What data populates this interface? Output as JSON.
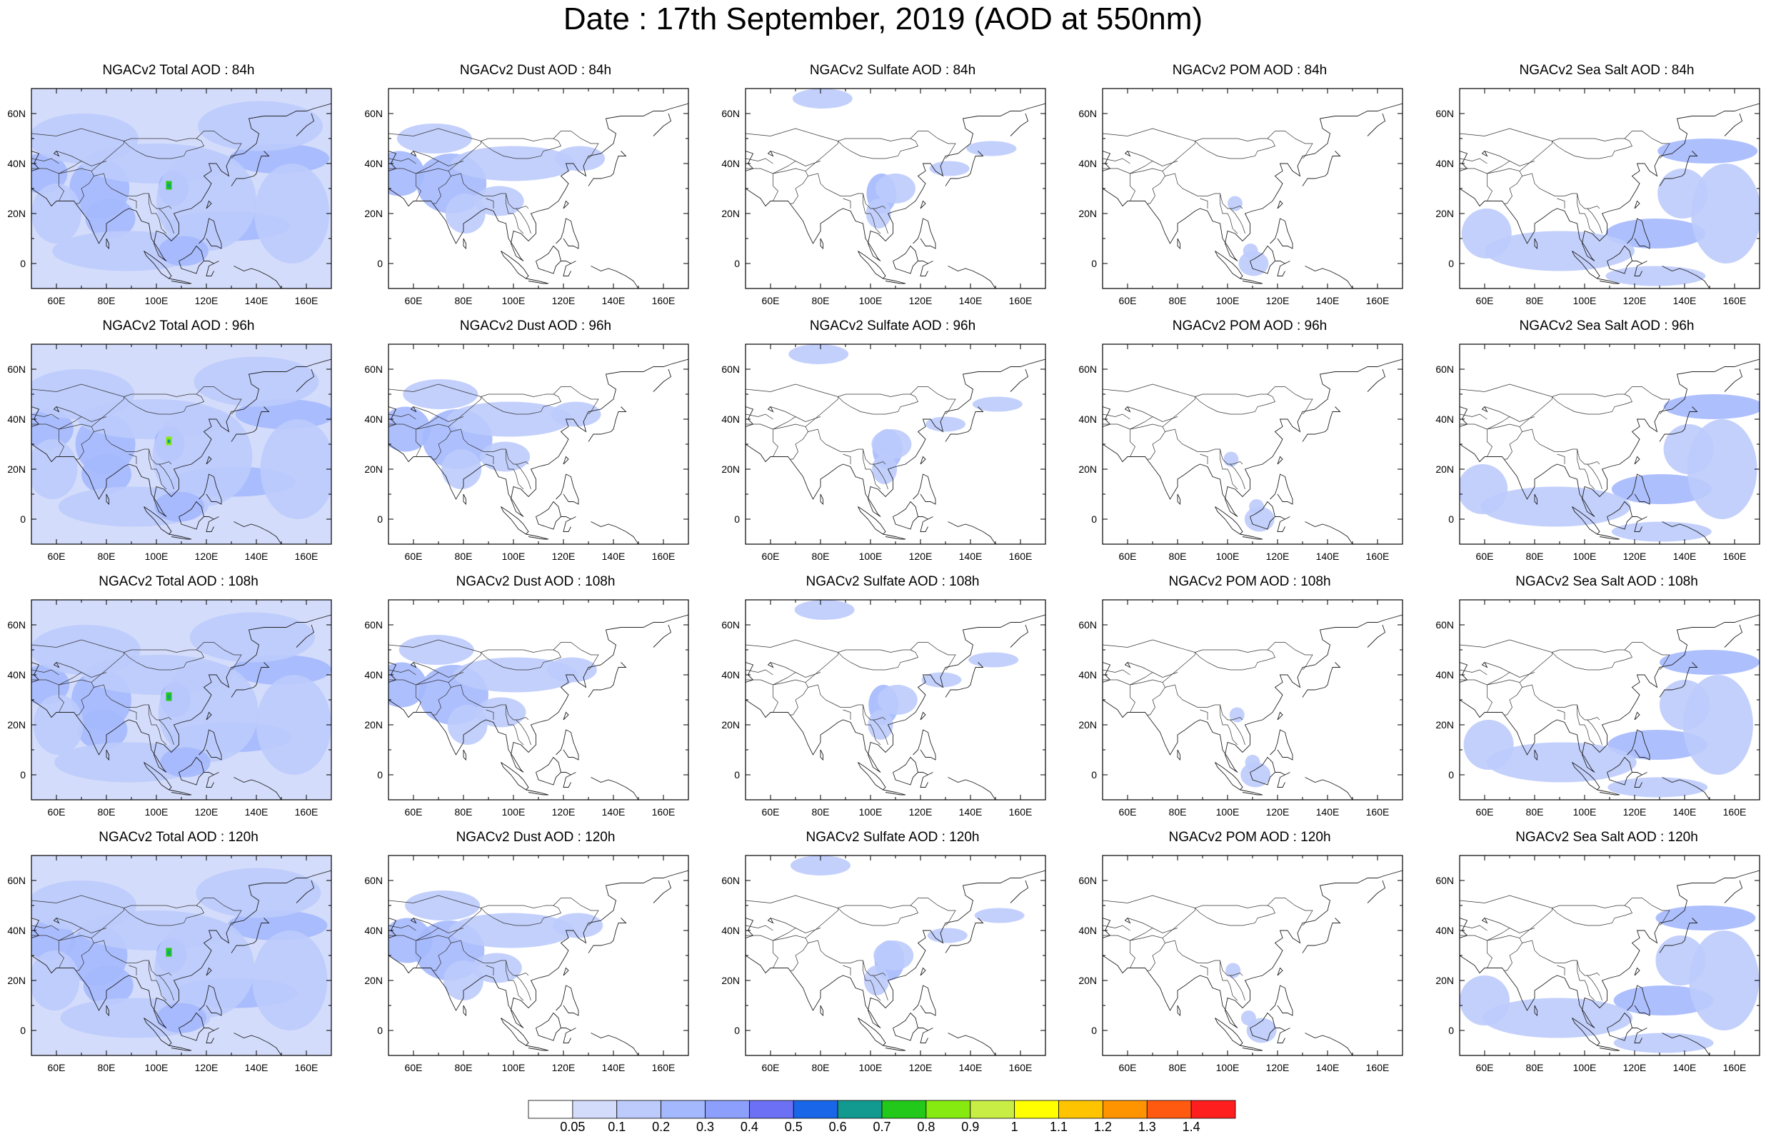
{
  "title": "Date : 17th September, 2019 (AOD at 550nm)",
  "panels": [
    [
      "NGACv2 Total AOD : 84h",
      "NGACv2 Dust AOD : 84h",
      "NGACv2 Sulfate AOD : 84h",
      "NGACv2 POM AOD : 84h",
      "NGACv2 Sea Salt AOD : 84h"
    ],
    [
      "NGACv2 Total AOD : 96h",
      "NGACv2 Dust AOD : 96h",
      "NGACv2 Sulfate AOD : 96h",
      "NGACv2 POM AOD : 96h",
      "NGACv2 Sea Salt AOD : 96h"
    ],
    [
      "NGACv2 Total AOD : 108h",
      "NGACv2 Dust AOD : 108h",
      "NGACv2 Sulfate AOD : 108h",
      "NGACv2 POM AOD : 108h",
      "NGACv2 Sea Salt AOD : 108h"
    ],
    [
      "NGACv2 Total AOD : 120h",
      "NGACv2 Dust AOD : 120h",
      "NGACv2 Sulfate AOD : 120h",
      "NGACv2 POM AOD : 120h",
      "NGACv2 Sea Salt  AOD : 120h"
    ]
  ],
  "axis": {
    "lon_ticks": [
      "60E",
      "80E",
      "100E",
      "120E",
      "140E",
      "160E"
    ],
    "lat_ticks": [
      "60N",
      "40N",
      "20N",
      "0"
    ],
    "lon_range": [
      50,
      170
    ],
    "lat_range": [
      -10,
      70
    ]
  },
  "colorbar": {
    "labels": [
      "0.05",
      "0.1",
      "0.2",
      "0.3",
      "0.4",
      "0.5",
      "0.6",
      "0.7",
      "0.8",
      "0.9",
      "1",
      "1.1",
      "1.2",
      "1.3",
      "1.4"
    ],
    "colors": [
      "#ffffff",
      "#d4dcfb",
      "#bccbfc",
      "#a4b8fd",
      "#8c9ffd",
      "#6b70f4",
      "#1a66e8",
      "#139a90",
      "#22c81a",
      "#86ea10",
      "#c8ee46",
      "#ffff00",
      "#ffc400",
      "#ff9400",
      "#ff5a10",
      "#ff1e1e"
    ]
  }
}
